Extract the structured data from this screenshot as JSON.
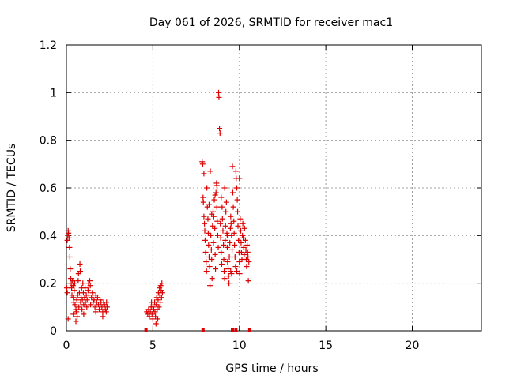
{
  "chart_data": {
    "type": "scatter",
    "title": "Day 061 of 2026, SRMTID for receiver mac1",
    "xlabel": "GPS time / hours",
    "ylabel": "SRMTID / TECUs",
    "xlim": [
      0,
      24
    ],
    "ylim": [
      0,
      1.2
    ],
    "x_ticks": [
      0,
      5,
      10,
      15,
      20
    ],
    "y_ticks": [
      0,
      0.2,
      0.4,
      0.6,
      0.8,
      1,
      1.2
    ],
    "x_tick_labels": [
      "0",
      "5",
      "10",
      "15",
      "20"
    ],
    "y_tick_labels": [
      "0",
      "0.2",
      "0.4",
      "0.6",
      "0.8",
      "1",
      "1.2"
    ],
    "grid": true,
    "marker": "+",
    "color": "#dd0000",
    "series": [
      {
        "name": "SRMTID",
        "points": [
          [
            0.02,
            0.18
          ],
          [
            0.05,
            0.16
          ],
          [
            0.05,
            0.38
          ],
          [
            0.08,
            0.4
          ],
          [
            0.1,
            0.42
          ],
          [
            0.12,
            0.41
          ],
          [
            0.15,
            0.39
          ],
          [
            0.18,
            0.35
          ],
          [
            0.2,
            0.31
          ],
          [
            0.22,
            0.26
          ],
          [
            0.25,
            0.22
          ],
          [
            0.28,
            0.2
          ],
          [
            0.3,
            0.18
          ],
          [
            0.32,
            0.15
          ],
          [
            0.35,
            0.21
          ],
          [
            0.38,
            0.19
          ],
          [
            0.4,
            0.14
          ],
          [
            0.42,
            0.12
          ],
          [
            0.45,
            0.17
          ],
          [
            0.48,
            0.2
          ],
          [
            0.5,
            0.11
          ],
          [
            0.55,
            0.09
          ],
          [
            0.58,
            0.08
          ],
          [
            0.6,
            0.13
          ],
          [
            0.62,
            0.06
          ],
          [
            0.65,
            0.15
          ],
          [
            0.68,
            0.21
          ],
          [
            0.7,
            0.24
          ],
          [
            0.72,
            0.1
          ],
          [
            0.75,
            0.16
          ],
          [
            0.78,
            0.28
          ],
          [
            0.8,
            0.25
          ],
          [
            0.82,
            0.12
          ],
          [
            0.85,
            0.14
          ],
          [
            0.88,
            0.18
          ],
          [
            0.9,
            0.09
          ],
          [
            0.92,
            0.13
          ],
          [
            0.95,
            0.2
          ],
          [
            0.98,
            0.16
          ],
          [
            1.0,
            0.11
          ],
          [
            1.05,
            0.14
          ],
          [
            1.08,
            0.18
          ],
          [
            1.1,
            0.12
          ],
          [
            1.15,
            0.15
          ],
          [
            1.18,
            0.1
          ],
          [
            1.2,
            0.13
          ],
          [
            1.25,
            0.17
          ],
          [
            1.28,
            0.2
          ],
          [
            1.3,
            0.15
          ],
          [
            1.35,
            0.21
          ],
          [
            1.38,
            0.19
          ],
          [
            1.4,
            0.11
          ],
          [
            1.45,
            0.14
          ],
          [
            1.5,
            0.16
          ],
          [
            1.55,
            0.12
          ],
          [
            1.6,
            0.13
          ],
          [
            1.65,
            0.1
          ],
          [
            1.7,
            0.15
          ],
          [
            1.75,
            0.12
          ],
          [
            1.8,
            0.14
          ],
          [
            1.85,
            0.11
          ],
          [
            1.9,
            0.09
          ],
          [
            1.95,
            0.13
          ],
          [
            2.0,
            0.12
          ],
          [
            2.05,
            0.1
          ],
          [
            2.1,
            0.08
          ],
          [
            2.15,
            0.12
          ],
          [
            2.2,
            0.11
          ],
          [
            2.25,
            0.09
          ],
          [
            2.3,
            0.08
          ],
          [
            2.32,
            0.12
          ],
          [
            2.35,
            0.1
          ],
          [
            0.1,
            0.05
          ],
          [
            0.4,
            0.07
          ],
          [
            0.55,
            0.04
          ],
          [
            1.0,
            0.07
          ],
          [
            1.7,
            0.08
          ],
          [
            2.1,
            0.06
          ],
          [
            4.65,
            0.08
          ],
          [
            4.7,
            0.07
          ],
          [
            4.75,
            0.09
          ],
          [
            4.8,
            0.06
          ],
          [
            4.85,
            0.08
          ],
          [
            4.9,
            0.1
          ],
          [
            4.95,
            0.07
          ],
          [
            5.0,
            0.05
          ],
          [
            5.05,
            0.09
          ],
          [
            5.1,
            0.12
          ],
          [
            5.12,
            0.08
          ],
          [
            5.15,
            0.06
          ],
          [
            5.2,
            0.11
          ],
          [
            5.22,
            0.14
          ],
          [
            5.25,
            0.09
          ],
          [
            5.3,
            0.13
          ],
          [
            5.32,
            0.16
          ],
          [
            5.35,
            0.1
          ],
          [
            5.38,
            0.18
          ],
          [
            5.4,
            0.15
          ],
          [
            5.42,
            0.12
          ],
          [
            5.45,
            0.19
          ],
          [
            5.48,
            0.17
          ],
          [
            5.5,
            0.14
          ],
          [
            5.52,
            0.2
          ],
          [
            5.55,
            0.16
          ],
          [
            5.0,
            0.1
          ],
          [
            4.92,
            0.12
          ],
          [
            5.18,
            0.03
          ],
          [
            5.28,
            0.05
          ],
          [
            7.85,
            0.71
          ],
          [
            7.88,
            0.7
          ],
          [
            7.9,
            0.56
          ],
          [
            7.92,
            0.54
          ],
          [
            7.95,
            0.48
          ],
          [
            7.98,
            0.45
          ],
          [
            8.0,
            0.42
          ],
          [
            8.02,
            0.38
          ],
          [
            8.05,
            0.33
          ],
          [
            8.08,
            0.29
          ],
          [
            8.1,
            0.25
          ],
          [
            8.12,
            0.6
          ],
          [
            8.15,
            0.52
          ],
          [
            8.18,
            0.47
          ],
          [
            8.2,
            0.41
          ],
          [
            8.22,
            0.36
          ],
          [
            8.25,
            0.31
          ],
          [
            8.28,
            0.27
          ],
          [
            8.3,
            0.19
          ],
          [
            8.32,
            0.67
          ],
          [
            8.35,
            0.4
          ],
          [
            8.38,
            0.34
          ],
          [
            8.4,
            0.3
          ],
          [
            8.42,
            0.22
          ],
          [
            8.45,
            0.44
          ],
          [
            8.48,
            0.5
          ],
          [
            8.5,
            0.37
          ],
          [
            8.52,
            0.48
          ],
          [
            8.55,
            0.55
          ],
          [
            8.58,
            0.43
          ],
          [
            8.6,
            0.32
          ],
          [
            8.62,
            0.26
          ],
          [
            8.65,
            0.58
          ],
          [
            8.68,
            0.62
          ],
          [
            8.7,
            0.52
          ],
          [
            8.72,
            0.46
          ],
          [
            8.75,
            0.4
          ],
          [
            8.78,
            0.35
          ],
          [
            8.8,
            1.0
          ],
          [
            8.82,
            0.98
          ],
          [
            8.85,
            0.85
          ],
          [
            8.88,
            0.83
          ],
          [
            8.9,
            0.45
          ],
          [
            8.92,
            0.39
          ],
          [
            8.95,
            0.33
          ],
          [
            8.98,
            0.28
          ],
          [
            9.0,
            0.52
          ],
          [
            9.02,
            0.47
          ],
          [
            9.05,
            0.42
          ],
          [
            9.08,
            0.36
          ],
          [
            9.1,
            0.3
          ],
          [
            9.12,
            0.25
          ],
          [
            9.15,
            0.22
          ],
          [
            9.18,
            0.38
          ],
          [
            9.2,
            0.44
          ],
          [
            9.22,
            0.5
          ],
          [
            9.25,
            0.54
          ],
          [
            9.28,
            0.41
          ],
          [
            9.3,
            0.35
          ],
          [
            9.32,
            0.29
          ],
          [
            9.35,
            0.26
          ],
          [
            9.38,
            0.23
          ],
          [
            9.4,
            0.2
          ],
          [
            9.42,
            0.31
          ],
          [
            9.45,
            0.37
          ],
          [
            9.48,
            0.43
          ],
          [
            9.5,
            0.48
          ],
          [
            9.52,
            0.45
          ],
          [
            9.55,
            0.4
          ],
          [
            9.58,
            0.34
          ],
          [
            9.6,
            0.69
          ],
          [
            9.62,
            0.58
          ],
          [
            9.65,
            0.52
          ],
          [
            9.68,
            0.46
          ],
          [
            9.7,
            0.41
          ],
          [
            9.72,
            0.36
          ],
          [
            9.75,
            0.31
          ],
          [
            9.78,
            0.27
          ],
          [
            9.8,
            0.67
          ],
          [
            9.82,
            0.64
          ],
          [
            9.85,
            0.6
          ],
          [
            9.88,
            0.55
          ],
          [
            9.9,
            0.5
          ],
          [
            9.92,
            0.44
          ],
          [
            9.95,
            0.38
          ],
          [
            9.98,
            0.33
          ],
          [
            10.0,
            0.29
          ],
          [
            10.02,
            0.24
          ],
          [
            10.05,
            0.47
          ],
          [
            10.08,
            0.42
          ],
          [
            10.1,
            0.37
          ],
          [
            10.12,
            0.33
          ],
          [
            10.15,
            0.3
          ],
          [
            10.18,
            0.4
          ],
          [
            10.2,
            0.45
          ],
          [
            10.22,
            0.39
          ],
          [
            10.25,
            0.35
          ],
          [
            10.28,
            0.32
          ],
          [
            10.3,
            0.43
          ],
          [
            10.35,
            0.38
          ],
          [
            10.38,
            0.34
          ],
          [
            10.4,
            0.3
          ],
          [
            10.42,
            0.27
          ],
          [
            10.45,
            0.36
          ],
          [
            10.48,
            0.33
          ],
          [
            10.5,
            0.31
          ],
          [
            10.52,
            0.21
          ],
          [
            10.55,
            0.29
          ],
          [
            8.7,
            0.61
          ],
          [
            8.6,
            0.57
          ],
          [
            9.5,
            0.25
          ],
          [
            9.55,
            0.24
          ],
          [
            9.15,
            0.6
          ],
          [
            8.95,
            0.56
          ],
          [
            7.95,
            0.66
          ],
          [
            9.85,
            0.25
          ],
          [
            10.0,
            0.64
          ],
          [
            8.4,
            0.49
          ],
          [
            8.25,
            0.53
          ],
          [
            9.3,
            0.4
          ]
        ]
      }
    ],
    "zero_marks_x": [
      4.6,
      7.9,
      9.6,
      9.8,
      10.6
    ]
  }
}
